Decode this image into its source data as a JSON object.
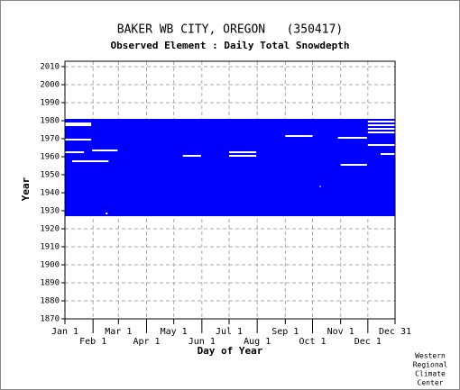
{
  "chart_data": {
    "type": "coverage",
    "title": "BAKER WB CITY, OREGON   (350417)",
    "subtitle": "Observed Element : Daily Total Snowdepth",
    "x_label": "Day of Year",
    "y_label": "Year",
    "credit": [
      "Western",
      "Regional",
      "Climate",
      "Center"
    ],
    "color": "#0000ff",
    "record_years": [
      1927,
      1981
    ],
    "gaps": [
      [
        1978,
        1,
        30
      ],
      [
        1977,
        1,
        30
      ],
      [
        1969,
        1,
        30
      ],
      [
        1963,
        31,
        59
      ],
      [
        1962,
        1,
        22
      ],
      [
        1957,
        9,
        49
      ],
      [
        1971,
        244,
        274
      ],
      [
        1962,
        182,
        212
      ],
      [
        1960,
        182,
        212
      ],
      [
        1960,
        131,
        151
      ],
      [
        1970,
        302,
        334
      ],
      [
        1955,
        305,
        334
      ],
      [
        1979,
        335,
        365
      ],
      [
        1977,
        335,
        365
      ],
      [
        1975,
        335,
        365
      ],
      [
        1973,
        335,
        365
      ],
      [
        1966,
        335,
        365
      ],
      [
        1961,
        349,
        365
      ],
      [
        1928,
        46,
        48
      ],
      [
        1943,
        282,
        283
      ]
    ],
    "xlim": [
      1,
      365
    ],
    "ylim": [
      1870,
      2013
    ],
    "xticks": [
      {
        "value": 1,
        "label": "Jan 1"
      },
      {
        "value": 32,
        "label": "Feb 1"
      },
      {
        "value": 60,
        "label": "Mar 1"
      },
      {
        "value": 91,
        "label": "Apr 1"
      },
      {
        "value": 121,
        "label": "May 1"
      },
      {
        "value": 152,
        "label": "Jun 1"
      },
      {
        "value": 182,
        "label": "Jul 1"
      },
      {
        "value": 213,
        "label": "Aug 1"
      },
      {
        "value": 244,
        "label": "Sep 1"
      },
      {
        "value": 274,
        "label": "Oct 1"
      },
      {
        "value": 305,
        "label": "Nov 1"
      },
      {
        "value": 335,
        "label": "Dec 1"
      },
      {
        "value": 365,
        "label": "Dec 31"
      }
    ],
    "yticks": [
      1870,
      1880,
      1890,
      1900,
      1910,
      1920,
      1930,
      1940,
      1950,
      1960,
      1970,
      1980,
      1990,
      2000,
      2010
    ],
    "grid": true
  }
}
